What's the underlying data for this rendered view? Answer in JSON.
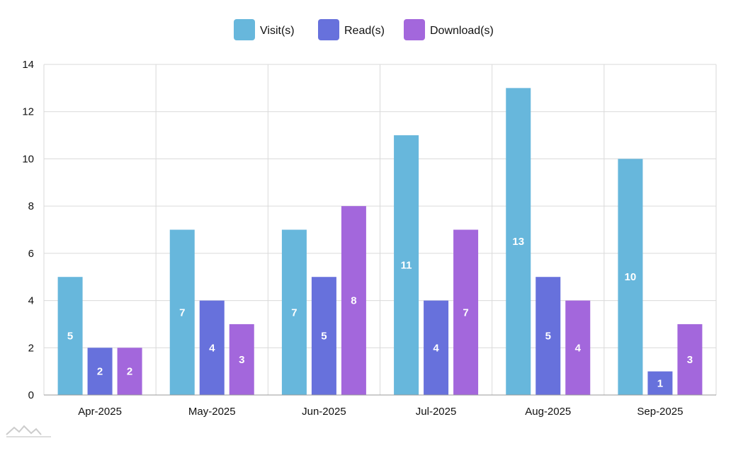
{
  "chart_data": {
    "type": "bar",
    "categories": [
      "Apr-2025",
      "May-2025",
      "Jun-2025",
      "Jul-2025",
      "Aug-2025",
      "Sep-2025"
    ],
    "series": [
      {
        "name": "Visit(s)",
        "color": "#67b7dc",
        "values": [
          5,
          7,
          7,
          11,
          13,
          10
        ]
      },
      {
        "name": "Read(s)",
        "color": "#6771dc",
        "values": [
          2,
          4,
          5,
          4,
          5,
          1
        ]
      },
      {
        "name": "Download(s)",
        "color": "#a367dc",
        "values": [
          2,
          3,
          8,
          7,
          4,
          3
        ]
      }
    ],
    "yticks": [
      "0",
      "2",
      "4",
      "6",
      "8",
      "10",
      "12",
      "14"
    ],
    "ylim": [
      0,
      14
    ],
    "grid": true,
    "legend": "top-center",
    "data_labels": true
  },
  "branding": {
    "logo_icon": "amcharts-logo-icon"
  }
}
